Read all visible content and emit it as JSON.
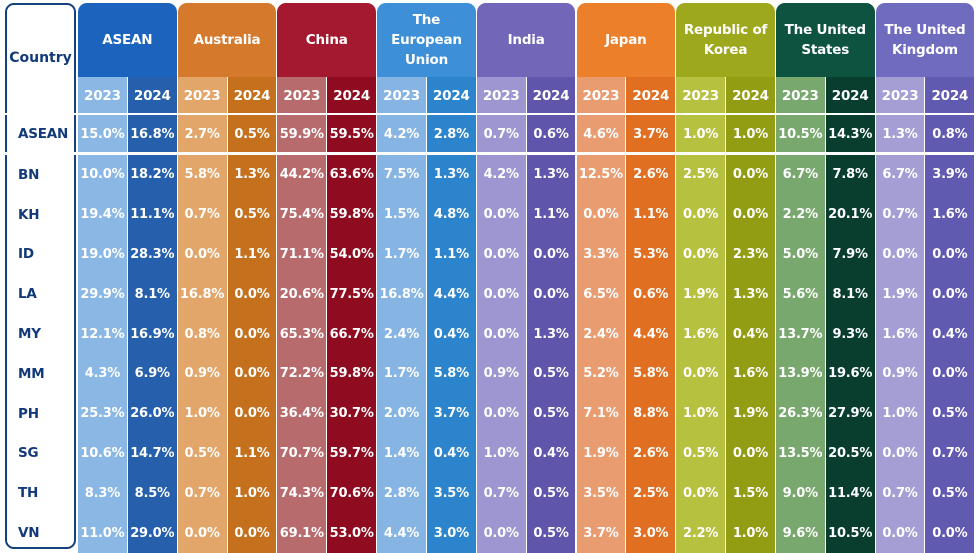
{
  "table": {
    "country_header": "Country",
    "years": [
      "2023",
      "2024"
    ],
    "partners": [
      {
        "name": "ASEAN",
        "colors": [
          "#1c63bd",
          "#0d3f94",
          "#8ab7e4",
          "#2660ac"
        ]
      },
      {
        "name": "Australia",
        "colors": [
          "#d57a2c",
          "#b85a0d",
          "#e2a56a",
          "#c5701d"
        ]
      },
      {
        "name": "China",
        "colors": [
          "#a51930",
          "#8a0f22",
          "#b86b6d",
          "#8e0b20"
        ]
      },
      {
        "name": "The European Union",
        "colors": [
          "#3d8fd8",
          "#1d77c6",
          "#86b4e3",
          "#2c84cd"
        ]
      },
      {
        "name": "India",
        "colors": [
          "#7266b8",
          "#55499e",
          "#9d96d1",
          "#5f55ab"
        ]
      },
      {
        "name": "Japan",
        "colors": [
          "#ec7f2a",
          "#d9651c",
          "#ea9c71",
          "#e06f21"
        ]
      },
      {
        "name": "Republic of Korea",
        "colors": [
          "#9ea81d",
          "#868f0e",
          "#b6c13f",
          "#939d14"
        ]
      },
      {
        "name": "The United States",
        "colors": [
          "#0d5340",
          "#053829",
          "#79a86f",
          "#093e2f"
        ]
      },
      {
        "name": "The United Kingdom",
        "colors": [
          "#6f6bbf",
          "#5b55a8",
          "#a49ed5",
          "#605ab0"
        ]
      }
    ],
    "rows": [
      {
        "code": "ASEAN",
        "values": [
          "15.0%",
          "16.8%",
          "2.7%",
          "0.5%",
          "59.9%",
          "59.5%",
          "4.2%",
          "2.8%",
          "0.7%",
          "0.6%",
          "4.6%",
          "3.7%",
          "1.0%",
          "1.0%",
          "10.5%",
          "14.3%",
          "1.3%",
          "0.8%"
        ]
      },
      {
        "code": "BN",
        "values": [
          "10.0%",
          "18.2%",
          "5.8%",
          "1.3%",
          "44.2%",
          "63.6%",
          "7.5%",
          "1.3%",
          "4.2%",
          "1.3%",
          "12.5%",
          "2.6%",
          "2.5%",
          "0.0%",
          "6.7%",
          "7.8%",
          "6.7%",
          "3.9%"
        ]
      },
      {
        "code": "KH",
        "values": [
          "19.4%",
          "11.1%",
          "0.7%",
          "0.5%",
          "75.4%",
          "59.8%",
          "1.5%",
          "4.8%",
          "0.0%",
          "1.1%",
          "0.0%",
          "1.1%",
          "0.0%",
          "0.0%",
          "2.2%",
          "20.1%",
          "0.7%",
          "1.6%"
        ]
      },
      {
        "code": "ID",
        "values": [
          "19.0%",
          "28.3%",
          "0.0%",
          "1.1%",
          "71.1%",
          "54.0%",
          "1.7%",
          "1.1%",
          "0.0%",
          "0.0%",
          "3.3%",
          "5.3%",
          "0.0%",
          "2.3%",
          "5.0%",
          "7.9%",
          "0.0%",
          "0.0%"
        ]
      },
      {
        "code": "LA",
        "values": [
          "29.9%",
          "8.1%",
          "16.8%",
          "0.0%",
          "20.6%",
          "77.5%",
          "16.8%",
          "4.4%",
          "0.0%",
          "0.0%",
          "6.5%",
          "0.6%",
          "1.9%",
          "1.3%",
          "5.6%",
          "8.1%",
          "1.9%",
          "0.0%"
        ]
      },
      {
        "code": "MY",
        "values": [
          "12.1%",
          "16.9%",
          "0.8%",
          "0.0%",
          "65.3%",
          "66.7%",
          "2.4%",
          "0.4%",
          "0.0%",
          "1.3%",
          "2.4%",
          "4.4%",
          "1.6%",
          "0.4%",
          "13.7%",
          "9.3%",
          "1.6%",
          "0.4%"
        ]
      },
      {
        "code": "MM",
        "values": [
          "4.3%",
          "6.9%",
          "0.9%",
          "0.0%",
          "72.2%",
          "59.8%",
          "1.7%",
          "5.8%",
          "0.9%",
          "0.5%",
          "5.2%",
          "5.8%",
          "0.0%",
          "1.6%",
          "13.9%",
          "19.6%",
          "0.9%",
          "0.0%"
        ]
      },
      {
        "code": "PH",
        "values": [
          "25.3%",
          "26.0%",
          "1.0%",
          "0.0%",
          "36.4%",
          "30.7%",
          "2.0%",
          "3.7%",
          "0.0%",
          "0.5%",
          "7.1%",
          "8.8%",
          "1.0%",
          "1.9%",
          "26.3%",
          "27.9%",
          "1.0%",
          "0.5%"
        ]
      },
      {
        "code": "SG",
        "values": [
          "10.6%",
          "14.7%",
          "0.5%",
          "1.1%",
          "70.7%",
          "59.7%",
          "1.4%",
          "0.4%",
          "1.0%",
          "0.4%",
          "1.9%",
          "2.6%",
          "0.5%",
          "0.0%",
          "13.5%",
          "20.5%",
          "0.0%",
          "0.7%"
        ]
      },
      {
        "code": "TH",
        "values": [
          "8.3%",
          "8.5%",
          "0.7%",
          "1.0%",
          "74.3%",
          "70.6%",
          "2.8%",
          "3.5%",
          "0.7%",
          "0.5%",
          "3.5%",
          "2.5%",
          "0.0%",
          "1.5%",
          "9.0%",
          "11.4%",
          "0.7%",
          "0.5%"
        ]
      },
      {
        "code": "VN",
        "values": [
          "11.0%",
          "29.0%",
          "0.0%",
          "0.0%",
          "69.1%",
          "53.0%",
          "4.4%",
          "3.0%",
          "0.0%",
          "0.5%",
          "3.7%",
          "3.0%",
          "2.2%",
          "1.0%",
          "9.6%",
          "10.5%",
          "0.0%",
          "0.0%"
        ]
      }
    ]
  }
}
